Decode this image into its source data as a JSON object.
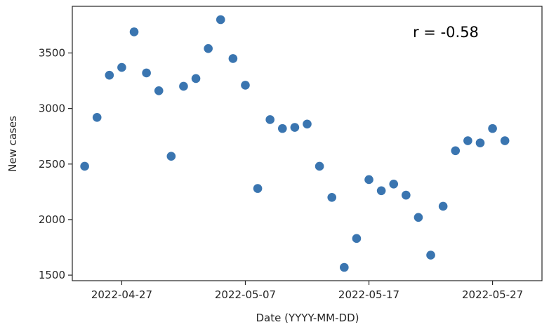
{
  "chart_data": {
    "type": "scatter",
    "xlabel": "Date (YYYY-MM-DD)",
    "ylabel": "New cases",
    "annotation": "r = -0.58",
    "x_ticks": [
      "2022-04-27",
      "2022-05-07",
      "2022-05-17",
      "2022-05-27"
    ],
    "y_ticks": [
      1500,
      2000,
      2500,
      3000,
      3500
    ],
    "ylim": [
      1450,
      3920
    ],
    "xlim": [
      "2022-04-23",
      "2022-05-31"
    ],
    "grid": false,
    "point_color": "#3a75b0",
    "points": [
      {
        "x": "2022-04-24",
        "y": 2480
      },
      {
        "x": "2022-04-25",
        "y": 2920
      },
      {
        "x": "2022-04-26",
        "y": 3300
      },
      {
        "x": "2022-04-27",
        "y": 3370
      },
      {
        "x": "2022-04-28",
        "y": 3690
      },
      {
        "x": "2022-04-29",
        "y": 3320
      },
      {
        "x": "2022-04-30",
        "y": 3160
      },
      {
        "x": "2022-05-01",
        "y": 2570
      },
      {
        "x": "2022-05-02",
        "y": 3200
      },
      {
        "x": "2022-05-03",
        "y": 3270
      },
      {
        "x": "2022-05-04",
        "y": 3540
      },
      {
        "x": "2022-05-05",
        "y": 3800
      },
      {
        "x": "2022-05-06",
        "y": 3450
      },
      {
        "x": "2022-05-07",
        "y": 3210
      },
      {
        "x": "2022-05-08",
        "y": 2280
      },
      {
        "x": "2022-05-09",
        "y": 2900
      },
      {
        "x": "2022-05-10",
        "y": 2820
      },
      {
        "x": "2022-05-11",
        "y": 2830
      },
      {
        "x": "2022-05-12",
        "y": 2860
      },
      {
        "x": "2022-05-13",
        "y": 2480
      },
      {
        "x": "2022-05-14",
        "y": 2200
      },
      {
        "x": "2022-05-15",
        "y": 1570
      },
      {
        "x": "2022-05-16",
        "y": 1830
      },
      {
        "x": "2022-05-17",
        "y": 2360
      },
      {
        "x": "2022-05-18",
        "y": 2260
      },
      {
        "x": "2022-05-19",
        "y": 2320
      },
      {
        "x": "2022-05-20",
        "y": 2220
      },
      {
        "x": "2022-05-21",
        "y": 2020
      },
      {
        "x": "2022-05-22",
        "y": 1680
      },
      {
        "x": "2022-05-23",
        "y": 2120
      },
      {
        "x": "2022-05-24",
        "y": 2620
      },
      {
        "x": "2022-05-25",
        "y": 2710
      },
      {
        "x": "2022-05-26",
        "y": 2690
      },
      {
        "x": "2022-05-27",
        "y": 2820
      },
      {
        "x": "2022-05-28",
        "y": 2710
      }
    ]
  }
}
